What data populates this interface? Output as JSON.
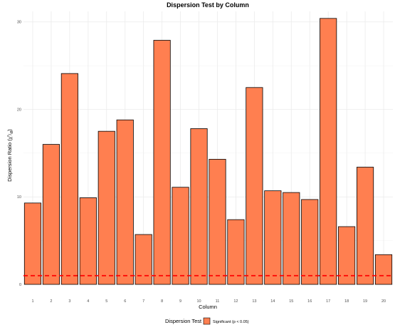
{
  "chart_data": {
    "type": "bar",
    "title": "Dispersion Test by Column",
    "xlabel": "Column",
    "ylabel_prefix": "Dispersion Ratio (",
    "ylabel_frac_num": "χ",
    "ylabel_frac_sup": "2",
    "ylabel_frac_den": "df",
    "ylabel_suffix": ")",
    "categories": [
      "1",
      "2",
      "3",
      "4",
      "5",
      "6",
      "7",
      "8",
      "9",
      "10",
      "11",
      "12",
      "13",
      "14",
      "15",
      "16",
      "17",
      "18",
      "19",
      "20"
    ],
    "values": [
      9.3,
      16.0,
      24.1,
      9.9,
      17.5,
      18.8,
      5.7,
      27.9,
      11.1,
      17.8,
      14.3,
      7.4,
      22.5,
      10.7,
      10.5,
      9.7,
      30.4,
      6.6,
      13.4,
      3.4
    ],
    "ylim": [
      0,
      31.2
    ],
    "yticks": [
      0,
      10,
      20,
      30
    ],
    "ytick_labels": [
      "0",
      "10",
      "20",
      "30"
    ],
    "reference_line": 1,
    "grid": true,
    "legend": {
      "title": "Dispersion Test",
      "placement": "bottom",
      "entries": [
        {
          "label": "Significant (p < 0.05)",
          "color": "#ff7f50"
        }
      ]
    },
    "colors": {
      "bar_fill": "#ff7f50",
      "bar_outline": "#000000",
      "reference_line": "#ff0000"
    }
  }
}
